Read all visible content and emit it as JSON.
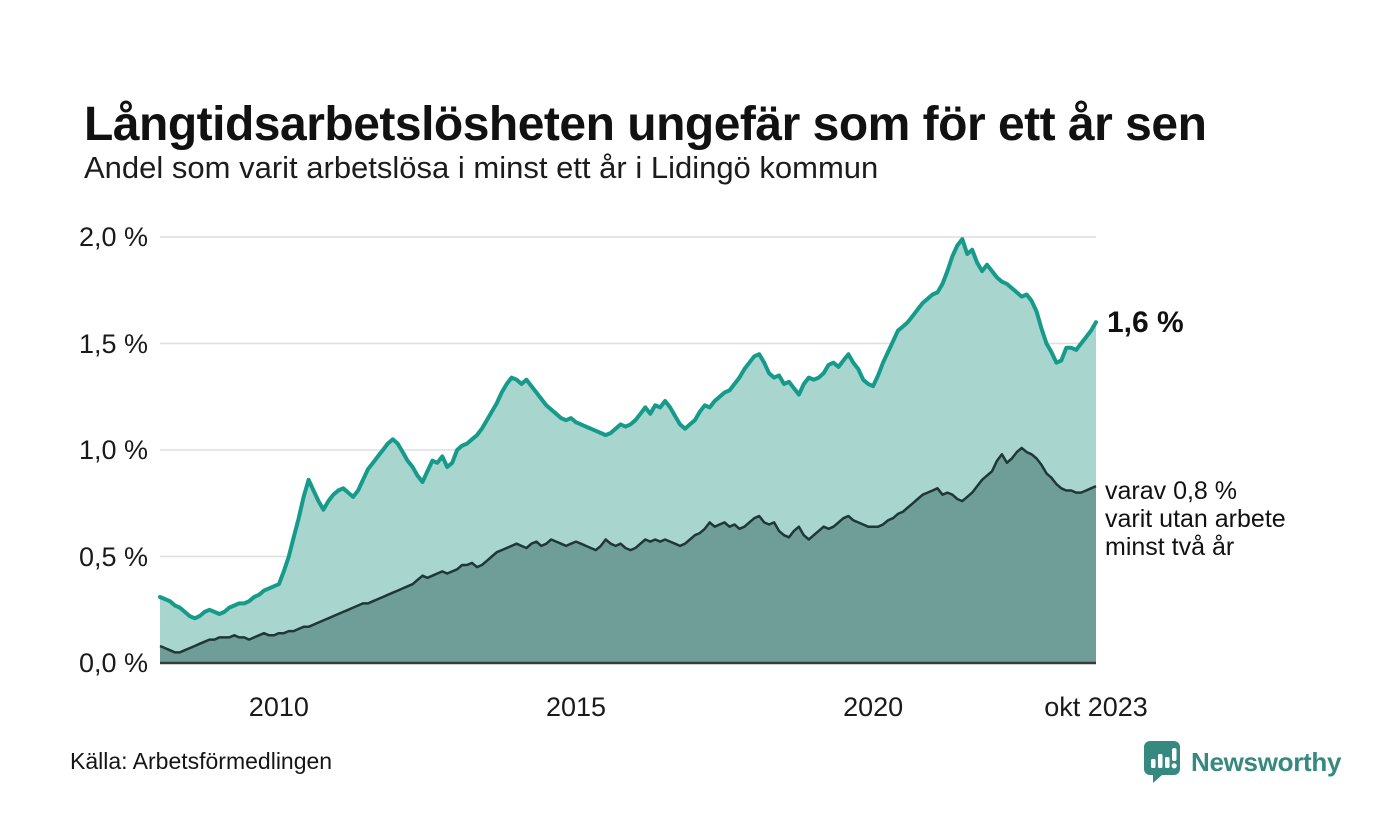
{
  "header": {
    "title": "Långtidsarbetslösheten ungefär som för ett år sen",
    "subtitle": "Andel som varit arbetslösa i minst ett år i Lidingö kommun"
  },
  "chart": {
    "y_axis_labels": [
      "2,0 %",
      "1,5 %",
      "1,0 %",
      "0,5 %",
      "0,0 %"
    ],
    "x_axis_labels": [
      "2010",
      "2015",
      "2020",
      "okt 2023"
    ],
    "annotations": {
      "latest_total": "1,6 %",
      "two_year_lines": [
        "varav 0,8 %",
        "varit utan arbete",
        "minst två år"
      ]
    },
    "colors": {
      "line_one_year": "#169b8b",
      "fill_one_year": "#a8d5ce",
      "line_two_year": "#1e3838",
      "fill_two_year": "#6f9d98",
      "gridline": "#dedede",
      "axis_line": "#3a3a3a"
    }
  },
  "chart_data": {
    "type": "area",
    "title": "Andel som varit arbetslösa i minst ett år i Lidingö kommun",
    "unit": "%",
    "frequency": "monthly",
    "x_start": "2008-01",
    "x_end": "2023-10",
    "ylim": [
      0,
      2.0
    ],
    "yticks": [
      0.0,
      0.5,
      1.0,
      1.5,
      2.0
    ],
    "xticks": [
      {
        "label": "2010",
        "t": 2010.0
      },
      {
        "label": "2015",
        "t": 2015.0
      },
      {
        "label": "2020",
        "t": 2020.0
      },
      {
        "label": "okt 2023",
        "t": 2023.75
      }
    ],
    "grid": "horizontal",
    "legend": "annotated at line ends",
    "series": [
      {
        "name": "Andel arbetslösa minst ett år",
        "end_label": "1,6 %",
        "end_value": 1.6,
        "color": "#169b8b",
        "fill": "#a8d5ce",
        "values": [
          0.31,
          0.3,
          0.29,
          0.27,
          0.26,
          0.24,
          0.22,
          0.21,
          0.22,
          0.24,
          0.25,
          0.24,
          0.23,
          0.24,
          0.26,
          0.27,
          0.28,
          0.28,
          0.29,
          0.31,
          0.32,
          0.34,
          0.35,
          0.36,
          0.37,
          0.43,
          0.5,
          0.59,
          0.68,
          0.78,
          0.86,
          0.81,
          0.76,
          0.72,
          0.76,
          0.79,
          0.81,
          0.82,
          0.8,
          0.78,
          0.81,
          0.86,
          0.91,
          0.94,
          0.97,
          1.0,
          1.03,
          1.05,
          1.03,
          0.99,
          0.95,
          0.92,
          0.88,
          0.85,
          0.9,
          0.95,
          0.94,
          0.97,
          0.92,
          0.94,
          1.0,
          1.02,
          1.03,
          1.05,
          1.07,
          1.1,
          1.14,
          1.18,
          1.22,
          1.27,
          1.31,
          1.34,
          1.33,
          1.31,
          1.33,
          1.3,
          1.27,
          1.24,
          1.21,
          1.19,
          1.17,
          1.15,
          1.14,
          1.15,
          1.13,
          1.12,
          1.11,
          1.1,
          1.09,
          1.08,
          1.07,
          1.08,
          1.1,
          1.12,
          1.11,
          1.12,
          1.14,
          1.17,
          1.2,
          1.17,
          1.21,
          1.2,
          1.23,
          1.2,
          1.16,
          1.12,
          1.1,
          1.12,
          1.14,
          1.18,
          1.21,
          1.2,
          1.23,
          1.25,
          1.27,
          1.28,
          1.31,
          1.34,
          1.38,
          1.41,
          1.44,
          1.45,
          1.41,
          1.36,
          1.34,
          1.35,
          1.31,
          1.32,
          1.29,
          1.26,
          1.31,
          1.34,
          1.33,
          1.34,
          1.36,
          1.4,
          1.41,
          1.39,
          1.42,
          1.45,
          1.41,
          1.38,
          1.33,
          1.31,
          1.3,
          1.35,
          1.41,
          1.46,
          1.51,
          1.56,
          1.58,
          1.6,
          1.63,
          1.66,
          1.69,
          1.71,
          1.73,
          1.74,
          1.78,
          1.84,
          1.91,
          1.96,
          1.99,
          1.92,
          1.94,
          1.88,
          1.84,
          1.87,
          1.84,
          1.81,
          1.79,
          1.78,
          1.76,
          1.74,
          1.72,
          1.73,
          1.7,
          1.65,
          1.57,
          1.5,
          1.46,
          1.41,
          1.42,
          1.48,
          1.48,
          1.47,
          1.5,
          1.53,
          1.56,
          1.6
        ]
      },
      {
        "name": "varav utan arbete minst två år",
        "end_label": "varav 0,8 % varit utan arbete minst två år",
        "end_value": 0.8,
        "color": "#1e3838",
        "fill": "#6f9d98",
        "values": [
          0.08,
          0.07,
          0.06,
          0.05,
          0.05,
          0.06,
          0.07,
          0.08,
          0.09,
          0.1,
          0.11,
          0.11,
          0.12,
          0.12,
          0.12,
          0.13,
          0.12,
          0.12,
          0.11,
          0.12,
          0.13,
          0.14,
          0.13,
          0.13,
          0.14,
          0.14,
          0.15,
          0.15,
          0.16,
          0.17,
          0.17,
          0.18,
          0.19,
          0.2,
          0.21,
          0.22,
          0.23,
          0.24,
          0.25,
          0.26,
          0.27,
          0.28,
          0.28,
          0.29,
          0.3,
          0.31,
          0.32,
          0.33,
          0.34,
          0.35,
          0.36,
          0.37,
          0.39,
          0.41,
          0.4,
          0.41,
          0.42,
          0.43,
          0.42,
          0.43,
          0.44,
          0.46,
          0.46,
          0.47,
          0.45,
          0.46,
          0.48,
          0.5,
          0.52,
          0.53,
          0.54,
          0.55,
          0.56,
          0.55,
          0.54,
          0.56,
          0.57,
          0.55,
          0.56,
          0.58,
          0.57,
          0.56,
          0.55,
          0.56,
          0.57,
          0.56,
          0.55,
          0.54,
          0.53,
          0.55,
          0.58,
          0.56,
          0.55,
          0.56,
          0.54,
          0.53,
          0.54,
          0.56,
          0.58,
          0.57,
          0.58,
          0.57,
          0.58,
          0.57,
          0.56,
          0.55,
          0.56,
          0.58,
          0.6,
          0.61,
          0.63,
          0.66,
          0.64,
          0.65,
          0.66,
          0.64,
          0.65,
          0.63,
          0.64,
          0.66,
          0.68,
          0.69,
          0.66,
          0.65,
          0.66,
          0.62,
          0.6,
          0.59,
          0.62,
          0.64,
          0.6,
          0.58,
          0.6,
          0.62,
          0.64,
          0.63,
          0.64,
          0.66,
          0.68,
          0.69,
          0.67,
          0.66,
          0.65,
          0.64,
          0.64,
          0.64,
          0.65,
          0.67,
          0.68,
          0.7,
          0.71,
          0.73,
          0.75,
          0.77,
          0.79,
          0.8,
          0.81,
          0.82,
          0.79,
          0.8,
          0.79,
          0.77,
          0.76,
          0.78,
          0.8,
          0.83,
          0.86,
          0.88,
          0.9,
          0.95,
          0.98,
          0.94,
          0.96,
          0.99,
          1.01,
          0.99,
          0.98,
          0.96,
          0.93,
          0.89,
          0.87,
          0.84,
          0.82,
          0.81,
          0.81,
          0.8,
          0.8,
          0.81,
          0.82,
          0.83
        ]
      }
    ]
  },
  "footer": {
    "source": "Källa: Arbetsförmedlingen",
    "brand": "Newsworthy",
    "brand_icon": "bar-chart-speech-bubble-icon",
    "brand_color": "#35897f"
  }
}
